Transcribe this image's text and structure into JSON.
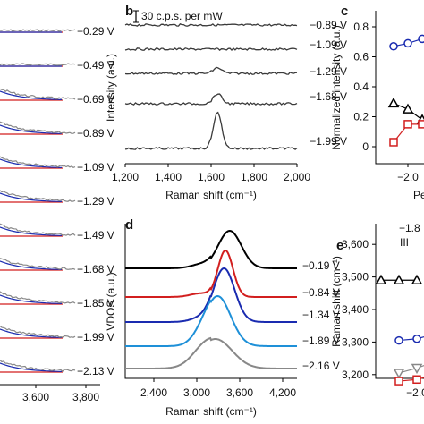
{
  "panels": {
    "a": {
      "voltages": [
        "−0.29 V",
        "−0.49 V",
        "−0.69 V",
        "−0.89 V",
        "−1.09 V",
        "−1.29 V",
        "−1.49 V",
        "−1.68 V",
        "−1.85 V",
        "−1.99 V",
        "−2.13 V"
      ],
      "x_ticks": [
        "3,600",
        "3,800"
      ]
    },
    "b": {
      "letter": "b",
      "scale_label": "30 c.p.s. per mW"
    },
    "c": {
      "letter": "c",
      "partial_xlabel": "Pe"
    },
    "d": {
      "letter": "d"
    },
    "e": {
      "letter": "e",
      "label_top": "−1.8",
      "roman": "III"
    }
  },
  "colors": {
    "black": "#000000",
    "red": "#d21f1f",
    "blue": "#1a2bb0",
    "lightblue": "#1e90d8",
    "grey": "#888888"
  },
  "chart_data": [
    {
      "panel": "b",
      "type": "line",
      "xlabel": "Raman shift (cm⁻¹)",
      "ylabel": "Intensity (a.u.)",
      "xlim": [
        1200,
        2000
      ],
      "xticks": [
        "1,200",
        "1,400",
        "1,600",
        "1,800",
        "2,000"
      ],
      "peak_center": 1630,
      "series": [
        {
          "name": "−0.89 V",
          "peak": 0
        },
        {
          "name": "−1.09 V",
          "peak": 0
        },
        {
          "name": "−1.29 V",
          "peak": 0.25
        },
        {
          "name": "−1.68 V",
          "peak": 0.45
        },
        {
          "name": "−1.99 V",
          "peak": 1.6
        }
      ]
    },
    {
      "panel": "c",
      "type": "scatter",
      "ylabel": "Normalized intensity (a.u.)",
      "ylim": [
        0,
        0.8
      ],
      "yticks": [
        "0",
        "0.2",
        "0.4",
        "0.6",
        "0.8"
      ],
      "xticks": [
        "−2.0"
      ],
      "series": [
        {
          "color": "#1a2bb0",
          "marker": "circle",
          "x": [
            -2.1,
            -2.0,
            -1.9
          ],
          "y": [
            0.67,
            0.69,
            0.72
          ]
        },
        {
          "color": "#000000",
          "marker": "triangle",
          "x": [
            -2.1,
            -2.0,
            -1.9
          ],
          "y": [
            0.29,
            0.25,
            0.18
          ]
        },
        {
          "color": "#d21f1f",
          "marker": "square",
          "x": [
            -2.1,
            -2.0,
            -1.9
          ],
          "y": [
            0.03,
            0.15,
            0.15
          ]
        }
      ]
    },
    {
      "panel": "d",
      "type": "line",
      "xlabel": "Raman shift (cm⁻¹)",
      "ylabel": "VDOS (a.u.)",
      "xlim": [
        2000,
        4400
      ],
      "xticks": [
        "2,400",
        "3,000",
        "3,600",
        "4,200"
      ],
      "series": [
        {
          "name": "−0.19 V",
          "color": "#000000"
        },
        {
          "name": "−0.84 V",
          "color": "#d21f1f"
        },
        {
          "name": "−1.34 V",
          "color": "#1a2bb0"
        },
        {
          "name": "−1.89 V",
          "color": "#1e90d8"
        },
        {
          "name": "−2.16 V",
          "color": "#888888"
        }
      ]
    },
    {
      "panel": "e",
      "type": "scatter",
      "ylabel": "Raman shift (cm⁻¹)",
      "ylim": [
        3150,
        3650
      ],
      "yticks": [
        "3,200",
        "3,300",
        "3,400",
        "3,500",
        "3,600"
      ],
      "xticks": [
        "−2.0"
      ],
      "series": [
        {
          "color": "#000000",
          "marker": "triangle",
          "x": [
            -2.2,
            -2.1,
            -2.0
          ],
          "y": [
            3490,
            3490,
            3490
          ]
        },
        {
          "color": "#1a2bb0",
          "marker": "circle",
          "x": [
            -2.1,
            -2.0,
            -1.9
          ],
          "y": [
            3305,
            3310,
            3325
          ]
        },
        {
          "color": "#888888",
          "marker": "triangle-down",
          "x": [
            -2.1,
            -2.0,
            -1.9
          ],
          "y": [
            3205,
            3220,
            3240
          ]
        },
        {
          "color": "#d21f1f",
          "marker": "square",
          "x": [
            -2.1,
            -2.0,
            -1.9
          ],
          "y": [
            3180,
            3185,
            3200
          ]
        }
      ]
    }
  ]
}
